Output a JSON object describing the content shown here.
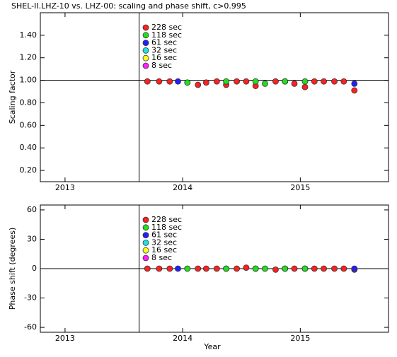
{
  "chart_data": [
    {
      "type": "scatter",
      "title": "SHEL-II.LHZ-10 vs. LHZ-00: scaling and phase shift, c>0.995",
      "ylabel": "Scaling factor",
      "xlim": [
        2012.79,
        2015.75
      ],
      "xticks": [
        2013,
        2014,
        2015
      ],
      "ylim": [
        0.1,
        1.6
      ],
      "yticks": [
        {
          "value": 0.2,
          "label": "0.20"
        },
        {
          "value": 0.4,
          "label": "0.40"
        },
        {
          "value": 0.6,
          "label": "0.60"
        },
        {
          "value": 0.8,
          "label": "0.80"
        },
        {
          "value": 1.0,
          "label": "1.00"
        },
        {
          "value": 1.2,
          "label": "1.20"
        },
        {
          "value": 1.4,
          "label": "1.40"
        }
      ],
      "hline": 1.0,
      "vline": 2013.63,
      "series": [
        {
          "name": "228 sec",
          "color": "#ff2020",
          "x": [
            2013.7,
            2013.8,
            2013.89,
            2014.13,
            2014.2,
            2014.29,
            2014.37,
            2014.46,
            2014.54,
            2014.62,
            2014.79,
            2014.87,
            2014.95,
            2015.04,
            2015.12,
            2015.2,
            2015.29,
            2015.37,
            2015.46
          ],
          "values": [
            0.99,
            0.99,
            0.99,
            0.96,
            0.98,
            0.99,
            0.96,
            0.99,
            0.99,
            0.95,
            0.99,
            0.99,
            0.97,
            0.94,
            0.99,
            0.99,
            0.99,
            0.99,
            0.91
          ]
        },
        {
          "name": "118 sec",
          "color": "#20e020",
          "x": [
            2014.04,
            2014.37,
            2014.62,
            2014.7,
            2014.87,
            2015.04
          ],
          "values": [
            0.98,
            0.99,
            0.99,
            0.97,
            0.99,
            0.99
          ]
        },
        {
          "name": "61 sec",
          "color": "#2020ff",
          "x": [
            2013.96,
            2015.46
          ],
          "values": [
            0.99,
            0.97
          ]
        },
        {
          "name": "32 sec",
          "color": "#20e0e0",
          "x": [],
          "values": []
        },
        {
          "name": "16 sec",
          "color": "#ffff20",
          "x": [],
          "values": []
        },
        {
          "name": "8 sec",
          "color": "#ff20ff",
          "x": [],
          "values": []
        }
      ]
    },
    {
      "type": "scatter",
      "xlabel": "Year",
      "ylabel": "Phase shift (degrees)",
      "xlim": [
        2012.79,
        2015.75
      ],
      "xticks": [
        2013,
        2014,
        2015
      ],
      "ylim": [
        -65,
        65
      ],
      "yticks": [
        -60,
        -30,
        0,
        30,
        60
      ],
      "hline": 0,
      "vline": 2013.63,
      "series": [
        {
          "name": "228 sec",
          "color": "#ff2020",
          "x": [
            2013.7,
            2013.8,
            2013.89,
            2014.13,
            2014.2,
            2014.29,
            2014.37,
            2014.46,
            2014.54,
            2014.62,
            2014.79,
            2014.87,
            2014.95,
            2015.04,
            2015.12,
            2015.2,
            2015.29,
            2015.37,
            2015.46
          ],
          "values": [
            0,
            0,
            0,
            0,
            0,
            0,
            0,
            0,
            1,
            0,
            -1,
            0,
            0,
            0,
            0,
            0,
            0,
            0,
            -1
          ]
        },
        {
          "name": "118 sec",
          "color": "#20e020",
          "x": [
            2014.04,
            2014.37,
            2014.62,
            2014.7,
            2014.87,
            2015.04
          ],
          "values": [
            0,
            0,
            0,
            0,
            0,
            0
          ]
        },
        {
          "name": "61 sec",
          "color": "#2020ff",
          "x": [
            2013.96,
            2015.46
          ],
          "values": [
            0,
            0
          ]
        },
        {
          "name": "32 sec",
          "color": "#20e0e0",
          "x": [],
          "values": []
        },
        {
          "name": "16 sec",
          "color": "#ffff20",
          "x": [],
          "values": []
        },
        {
          "name": "8 sec",
          "color": "#ff20ff",
          "x": [],
          "values": []
        }
      ]
    }
  ]
}
